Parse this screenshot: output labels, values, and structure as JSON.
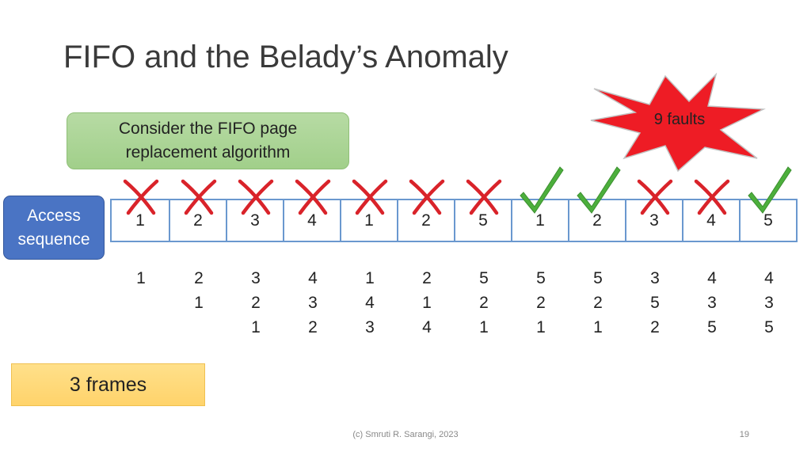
{
  "title": "FIFO and the Belady’s Anomaly",
  "callout": {
    "line1": "Consider the FIFO page",
    "line2": "replacement algorithm"
  },
  "access_label": {
    "line1": "Access",
    "line2": "sequence"
  },
  "sequence": [
    "1",
    "2",
    "3",
    "4",
    "1",
    "2",
    "5",
    "1",
    "2",
    "3",
    "4",
    "5"
  ],
  "marks": [
    "fault",
    "fault",
    "fault",
    "fault",
    "fault",
    "fault",
    "fault",
    "hit",
    "hit",
    "fault",
    "fault",
    "hit"
  ],
  "frame_contents": [
    [
      "1"
    ],
    [
      "2",
      "1"
    ],
    [
      "3",
      "2",
      "1"
    ],
    [
      "4",
      "3",
      "2"
    ],
    [
      "1",
      "4",
      "3"
    ],
    [
      "2",
      "1",
      "4"
    ],
    [
      "5",
      "2",
      "1"
    ],
    [
      "5",
      "2",
      "1"
    ],
    [
      "5",
      "2",
      "1"
    ],
    [
      "3",
      "5",
      "2"
    ],
    [
      "4",
      "3",
      "5"
    ],
    [
      "4",
      "3",
      "5"
    ]
  ],
  "frames_label": "3 frames",
  "faults_label": "9 faults",
  "footer": "(c) Smruti R. Sarangi, 2023",
  "page_number": "19",
  "colors": {
    "fault": "#d9232a",
    "hit": "#4caf3c",
    "burst": "#ee1c25",
    "cell_border": "#6a98cf"
  }
}
